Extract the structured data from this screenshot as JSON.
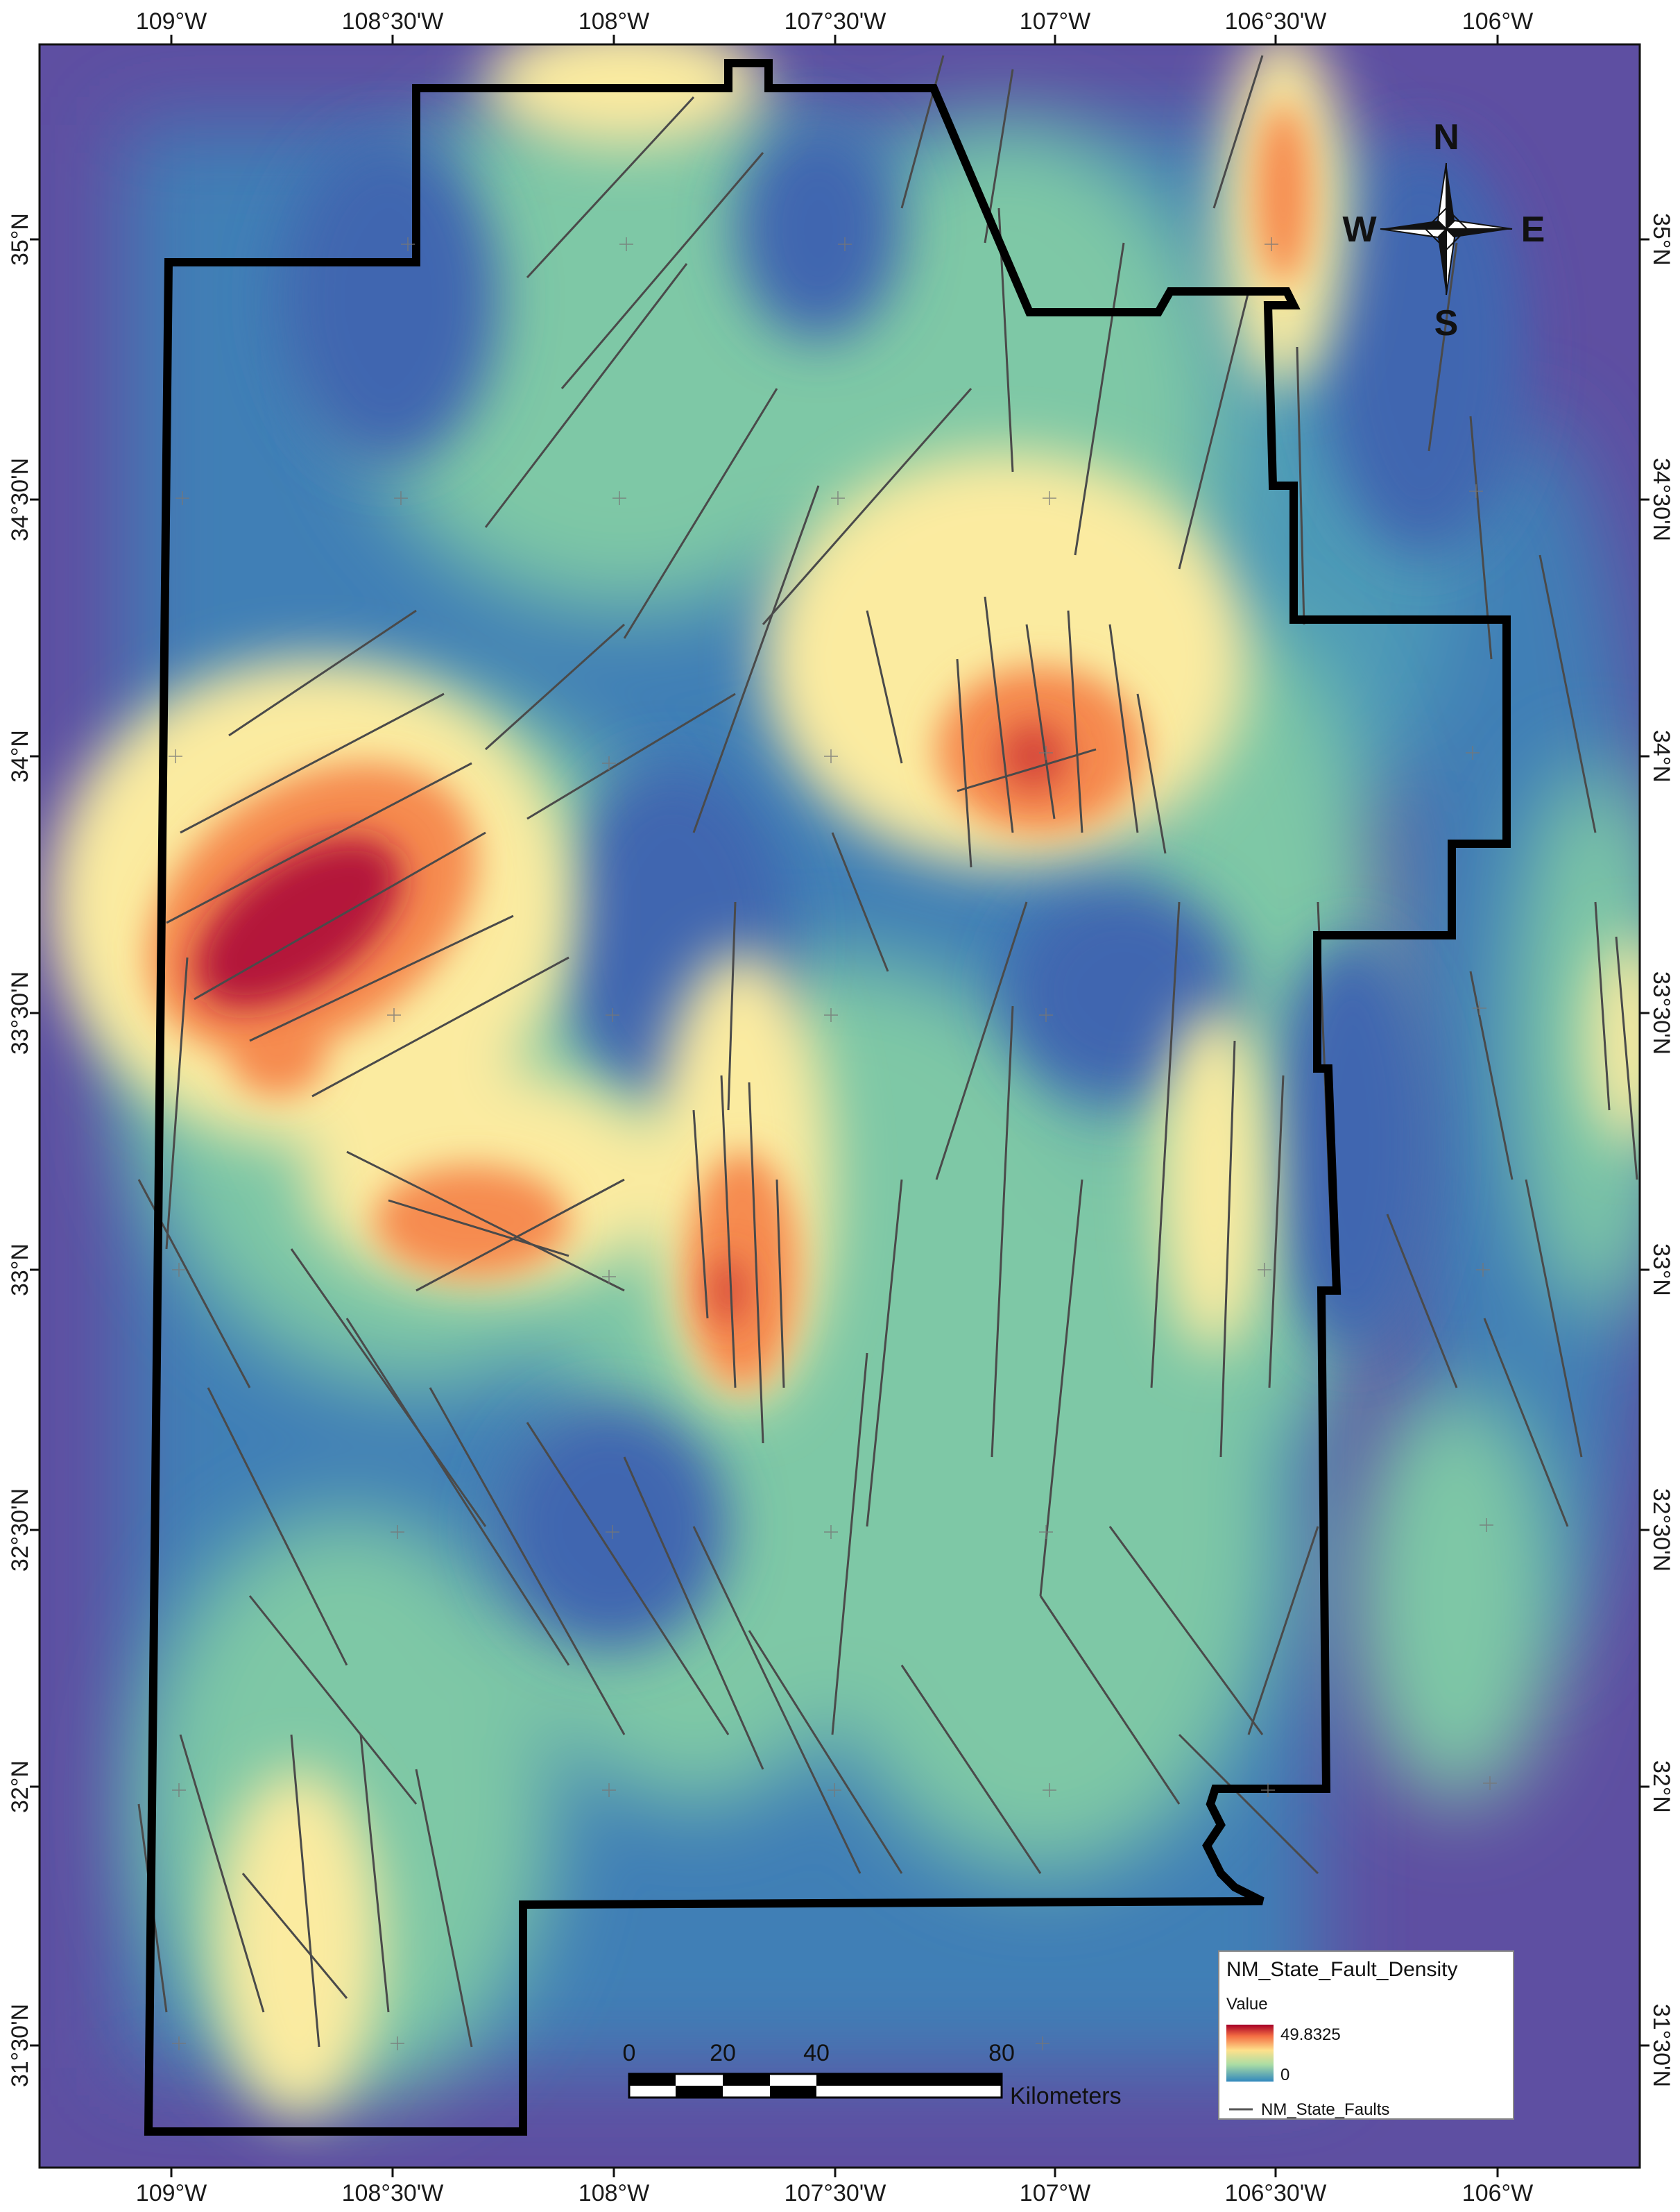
{
  "map": {
    "top_labels": [
      "109°W",
      "108°30'W",
      "108°W",
      "107°30'W",
      "107°W",
      "106°30'W",
      "106°W"
    ],
    "bottom_labels": [
      "109°W",
      "108°30'W",
      "108°W",
      "107°30'W",
      "107°W",
      "106°30'W",
      "106°W"
    ],
    "left_labels": [
      "35°N",
      "34°30'N",
      "34°N",
      "33°30'N",
      "33°N",
      "32°30'N",
      "32°N",
      "31°30'N"
    ],
    "right_labels": [
      "35°N",
      "34°30'N",
      "34°N",
      "33°30'N",
      "33°N",
      "32°30'N",
      "32°N",
      "31°30'N"
    ]
  },
  "compass": {
    "n": "N",
    "s": "S",
    "e": "E",
    "w": "W"
  },
  "legend": {
    "title": "NM_State_Fault_Density",
    "value_label": "Value",
    "high": "49.8325",
    "low": "0",
    "line_label": "NM_State_Faults",
    "colors": [
      "#a50026",
      "#e0402e",
      "#f98e52",
      "#fee08b",
      "#d8ef9b",
      "#7fcba4",
      "#3a7fb8",
      "#5e4fa2"
    ]
  },
  "scale_bar": {
    "ticks": [
      "0",
      "20",
      "40",
      "80"
    ],
    "unit": "Kilometers"
  },
  "colors": {
    "background": "#5e4fa2",
    "boundary": "#000000",
    "faults": "#4a4a4a"
  }
}
